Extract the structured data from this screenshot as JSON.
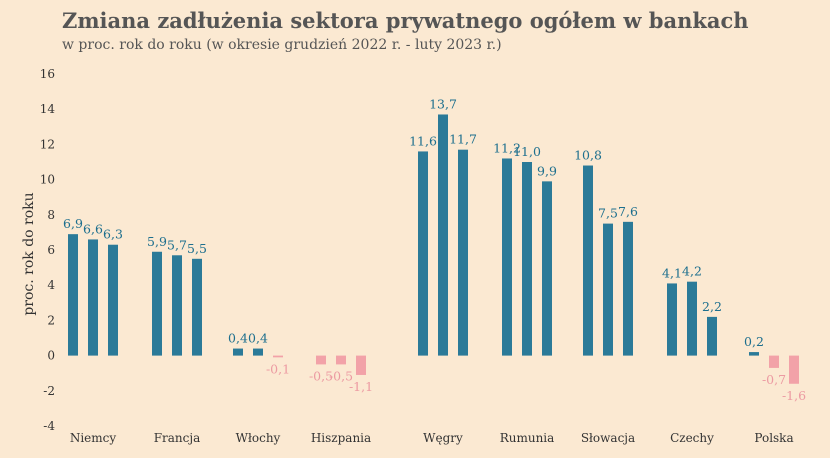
{
  "chart_data": {
    "type": "bar",
    "title": "Zmiana zadłużenia sektora prywatnego ogółem w bankach",
    "subtitle": "w proc. rok do roku (w okresie grudzień 2022 r. - luty 2023 r.)",
    "ylabel": "proc. rok do roku",
    "xlabel": "",
    "ylim": [
      -4,
      16
    ],
    "yticks": [
      -4,
      -2,
      0,
      2,
      4,
      6,
      8,
      10,
      12,
      14,
      16
    ],
    "grid": false,
    "colors": {
      "positive": "#2b7a98",
      "negative": "#f2a2a8",
      "positive_label": "#1d6f8e",
      "negative_label": "#ec9aa2"
    },
    "categories": [
      "Niemcy",
      "Francja",
      "Włochy",
      "Hiszpania",
      "Węgry",
      "Rumunia",
      "Słowacja",
      "Czechy",
      "Polska"
    ],
    "series_values": [
      [
        6.9,
        6.6,
        6.3
      ],
      [
        5.9,
        5.7,
        5.5
      ],
      [
        0.4,
        0.4,
        -0.1
      ],
      [
        -0.5,
        -0.5,
        -1.1
      ],
      [
        11.6,
        13.7,
        11.7
      ],
      [
        11.2,
        11.0,
        9.9
      ],
      [
        10.8,
        7.5,
        7.6
      ],
      [
        4.1,
        4.2,
        2.2
      ],
      [
        0.2,
        -0.7,
        -1.6
      ]
    ],
    "data_labels": [
      [
        "6,9",
        "6,6",
        "6,3"
      ],
      [
        "5,9",
        "5,7",
        "5,5"
      ],
      [
        "0,4",
        "0,4",
        "-0,1"
      ],
      [
        "-0,5",
        "-0,5",
        "-1,1"
      ],
      [
        "11,6",
        "13,7",
        "11,7"
      ],
      [
        "11,2",
        "11,0",
        "9,9"
      ],
      [
        "10,8",
        "7,5",
        "7,6"
      ],
      [
        "4,1",
        "4,2",
        "2,2"
      ],
      [
        "0,2",
        "-0,7",
        "-1,6"
      ]
    ]
  }
}
